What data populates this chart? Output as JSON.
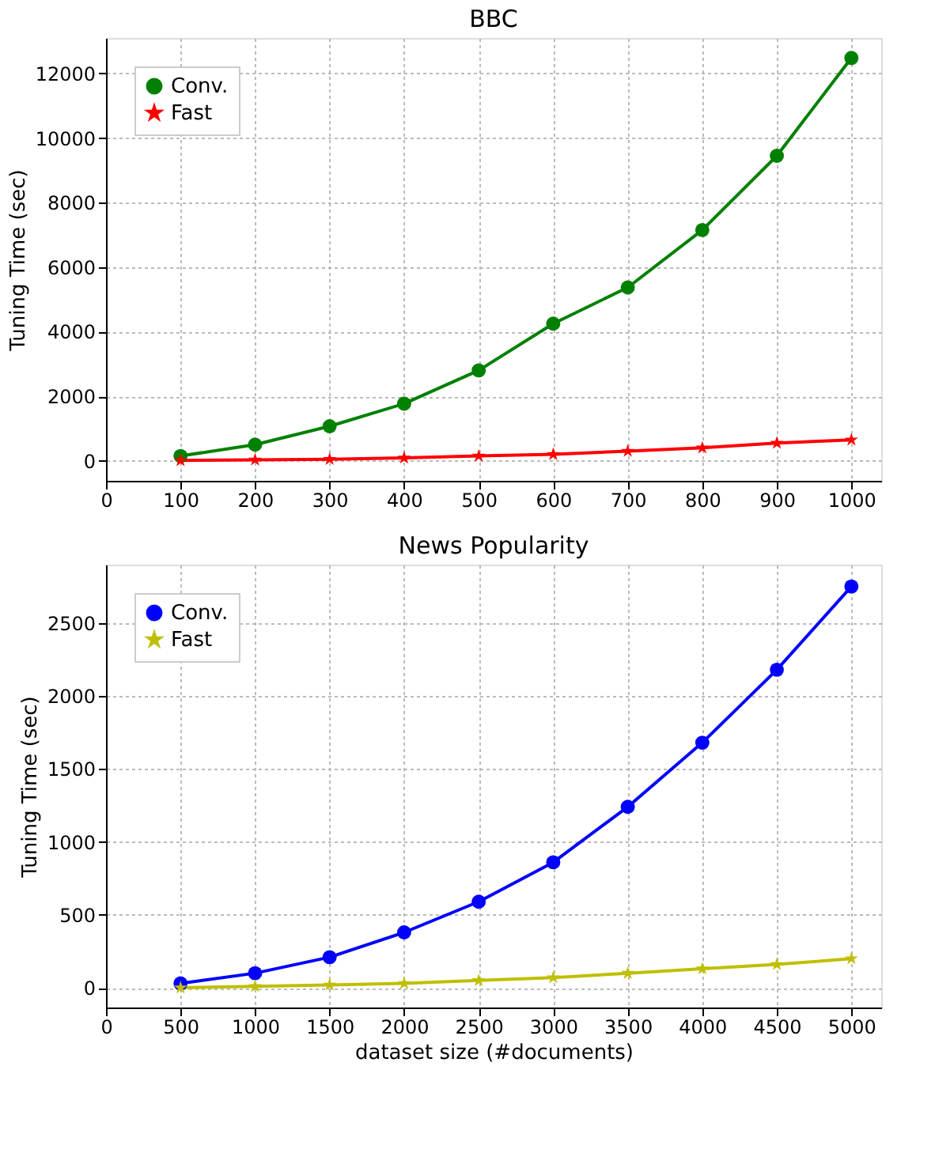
{
  "chart_data": [
    {
      "type": "line",
      "title": "BBC",
      "ylabel": "Tuning Time (sec)",
      "x": [
        100,
        200,
        300,
        400,
        500,
        600,
        700,
        800,
        900,
        1000
      ],
      "xlim": [
        0,
        1040
      ],
      "xticks": [
        0,
        100,
        200,
        300,
        400,
        500,
        600,
        700,
        800,
        900,
        1000
      ],
      "ylim": [
        -620,
        13100
      ],
      "yticks": [
        0,
        2000,
        4000,
        6000,
        8000,
        10000,
        12000
      ],
      "grid": true,
      "legend": "top left",
      "series": [
        {
          "name": "Conv.",
          "color": "#008000",
          "marker": "circle",
          "values": [
            150,
            500,
            1070,
            1770,
            2800,
            4250,
            5370,
            7150,
            9450,
            12480
          ]
        },
        {
          "name": "Fast",
          "color": "#ff0000",
          "marker": "star",
          "values": [
            10,
            30,
            50,
            90,
            150,
            200,
            300,
            400,
            550,
            650
          ]
        }
      ]
    },
    {
      "type": "line",
      "title": "News Popularity",
      "ylabel": "Tuning Time (sec)",
      "xlabel": "dataset size (#documents)",
      "x": [
        500,
        1000,
        1500,
        2000,
        2500,
        3000,
        3500,
        4000,
        4500,
        5000
      ],
      "xlim": [
        0,
        5200
      ],
      "xticks": [
        0,
        500,
        1000,
        1500,
        2000,
        2500,
        3000,
        3500,
        4000,
        4500,
        5000
      ],
      "ylim": [
        -135,
        2900
      ],
      "yticks": [
        0,
        500,
        1000,
        1500,
        2000,
        2500
      ],
      "grid": true,
      "legend": "top left",
      "series": [
        {
          "name": "Conv.",
          "color": "#0000ff",
          "marker": "circle",
          "values": [
            30,
            100,
            210,
            380,
            590,
            860,
            1240,
            1680,
            2180,
            2750
          ]
        },
        {
          "name": "Fast",
          "color": "#bfbf00",
          "marker": "star",
          "values": [
            0,
            10,
            20,
            30,
            50,
            70,
            100,
            130,
            160,
            200
          ]
        }
      ]
    }
  ]
}
